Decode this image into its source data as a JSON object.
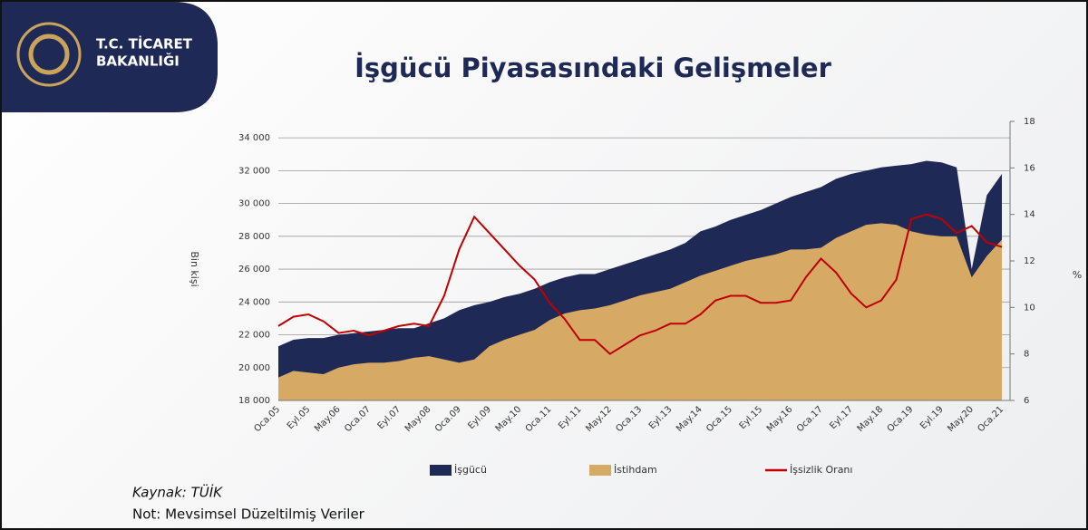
{
  "logo": {
    "line1": "T.C. TİCARET",
    "line2": "BAKANLIĞI"
  },
  "chart_data": {
    "type": "area",
    "title": "İşgücü Piyasasındaki Gelişmeler",
    "y_label": "Bin kişi",
    "y2_label": "%",
    "source": "Kaynak: TÜİK",
    "note": "Not: Mevsimsel Düzeltilmiş Veriler",
    "categories": [
      "Oca.05",
      null,
      "Eyl.05",
      null,
      "May.06",
      null,
      "Oca.07",
      null,
      "Eyl.07",
      null,
      "May.08",
      null,
      "Oca.09",
      null,
      "Eyl.09",
      null,
      "May.10",
      null,
      "Oca.11",
      null,
      "Eyl.11",
      null,
      "May.12",
      null,
      "Oca.13",
      null,
      "Eyl.13",
      null,
      "May.14",
      null,
      "Oca.15",
      null,
      "Eyl.15",
      null,
      "May.16",
      null,
      "Oca.17",
      null,
      "Eyl.17",
      null,
      "May.18",
      null,
      "Oca.19",
      null,
      "Eyl.19",
      null,
      "May.20",
      null,
      "Oca.21"
    ],
    "series": [
      {
        "name": "İşgücü",
        "type": "area",
        "color": "#1e2a55",
        "values": [
          21300,
          21700,
          21800,
          21800,
          22000,
          22100,
          22200,
          22300,
          22400,
          22400,
          22700,
          23000,
          23500,
          23800,
          24000,
          24300,
          24500,
          24800,
          25200,
          25500,
          25700,
          25700,
          26000,
          26300,
          26600,
          26900,
          27200,
          27600,
          28300,
          28600,
          29000,
          29300,
          29600,
          30000,
          30400,
          30700,
          31000,
          31500,
          31800,
          32000,
          32200,
          32300,
          32400,
          32600,
          32500,
          32200,
          26000,
          30500,
          31800
        ]
      },
      {
        "name": "İstihdam",
        "type": "area",
        "color": "#d6aa64",
        "values": [
          19400,
          19800,
          19700,
          19600,
          20000,
          20200,
          20300,
          20300,
          20400,
          20600,
          20700,
          20500,
          20300,
          20500,
          21300,
          21700,
          22000,
          22300,
          22900,
          23300,
          23500,
          23600,
          23800,
          24100,
          24400,
          24600,
          24800,
          25200,
          25600,
          25900,
          26200,
          26500,
          26700,
          26900,
          27200,
          27200,
          27300,
          27900,
          28300,
          28700,
          28800,
          28700,
          28300,
          28100,
          28000,
          28000,
          25500,
          26800,
          27800
        ]
      },
      {
        "name": "İşsizlik Oranı",
        "type": "line",
        "axis": "y2",
        "color": "#c00000",
        "values": [
          9.2,
          9.6,
          9.7,
          9.4,
          8.9,
          9.0,
          8.8,
          9.0,
          9.2,
          9.3,
          9.2,
          10.5,
          12.5,
          13.9,
          13.2,
          12.5,
          11.8,
          11.2,
          10.2,
          9.5,
          8.6,
          8.6,
          8.0,
          8.4,
          8.8,
          9.0,
          9.3,
          9.3,
          9.7,
          10.3,
          10.5,
          10.5,
          10.2,
          10.2,
          10.3,
          11.3,
          12.1,
          11.5,
          10.6,
          10.0,
          10.3,
          11.2,
          13.8,
          14.0,
          13.8,
          13.2,
          13.5,
          12.8,
          12.6
        ]
      }
    ],
    "ylim": [
      18000,
      35000
    ],
    "yticks": [
      {
        "value": 18000,
        "label": "18 000"
      },
      {
        "value": 20000,
        "label": "20 000"
      },
      {
        "value": 22000,
        "label": "22 000"
      },
      {
        "value": 24000,
        "label": "24 000"
      },
      {
        "value": 26000,
        "label": "26 000"
      },
      {
        "value": 28000,
        "label": "28 000"
      },
      {
        "value": 30000,
        "label": "30 000"
      },
      {
        "value": 32000,
        "label": "32 000"
      },
      {
        "value": 34000,
        "label": "34 000"
      }
    ],
    "y2lim": [
      6,
      18
    ],
    "y2ticks": [
      6,
      8,
      10,
      12,
      14,
      16,
      18
    ],
    "grid": true,
    "legend": "bottom"
  }
}
